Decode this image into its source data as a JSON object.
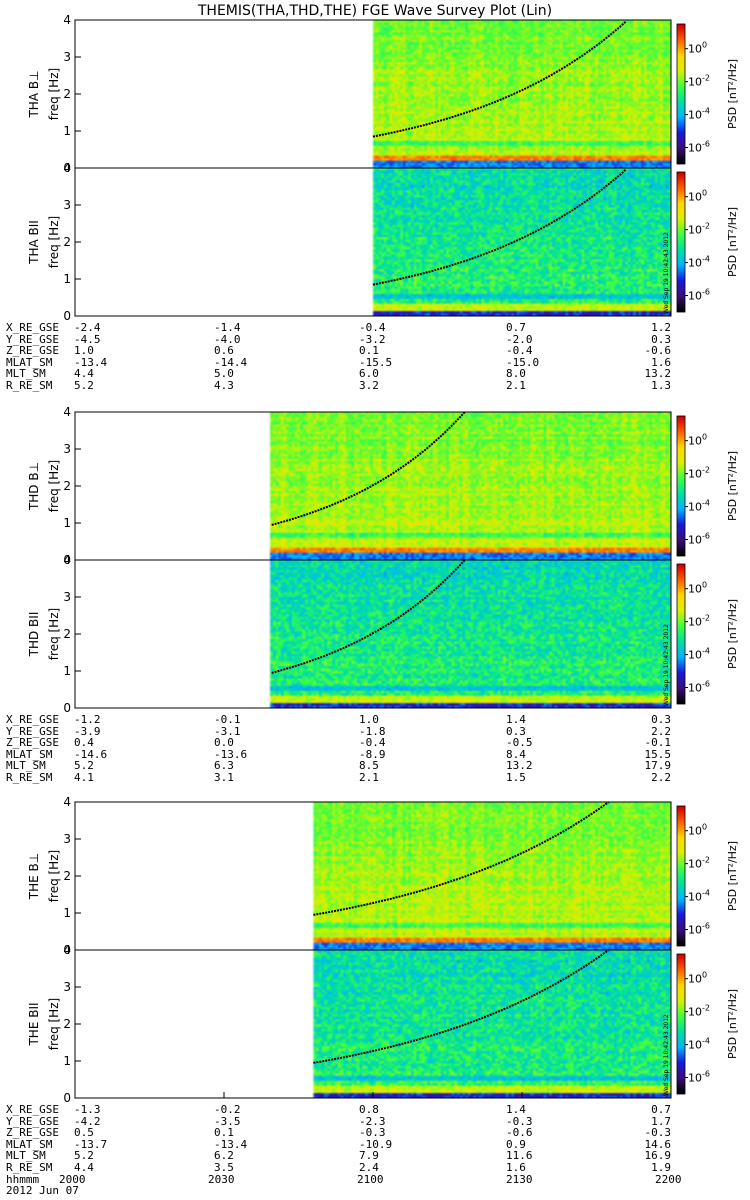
{
  "chart_data": {
    "type": "heatmap",
    "title": "THEMIS(THA,THD,THE) FGE Wave Survey Plot (Lin)",
    "date_label": "2012 Jun 07",
    "stamp": "Wed Sep 19 10:42:43 2012",
    "colorbar": {
      "label_prefix": "PSD",
      "label_unit": "[nT²/Hz]",
      "ticks": [
        {
          "base": "10",
          "exp": "0"
        },
        {
          "base": "10",
          "exp": "-2"
        },
        {
          "base": "10",
          "exp": "-4"
        },
        {
          "base": "10",
          "exp": "-6"
        }
      ],
      "range_log10": [
        -7,
        1.5
      ],
      "colors": [
        "#000000",
        "#3a0f7a",
        "#1a1adc",
        "#00b4ff",
        "#00e0a0",
        "#40ff40",
        "#d8f000",
        "#ffd800",
        "#ff6000",
        "#d00000"
      ]
    },
    "ylabel": "freq [Hz]",
    "yticks": [
      "0",
      "1",
      "2",
      "3",
      "4"
    ],
    "ylim": [
      0,
      4
    ],
    "x_axis": {
      "label": "hhmmm",
      "ticks": [
        "2000",
        "2030",
        "2100",
        "2130",
        "2200"
      ]
    },
    "probes": [
      {
        "id": "THA",
        "data_start_frac": 0.5,
        "gyro_start_hz": 0.85,
        "gyro_rate": 1.25,
        "panels": [
          {
            "label": "THA B⊥",
            "component": "perp"
          },
          {
            "label": "THA BII",
            "component": "par"
          }
        ],
        "orbit": [
          {
            "name": "X_RE_GSE",
            "values": [
              "-2.4",
              "-1.4",
              "-0.4",
              "0.7",
              "1.2"
            ]
          },
          {
            "name": "Y_RE_GSE",
            "values": [
              "-4.5",
              "-4.0",
              "-3.2",
              "-2.0",
              "0.3"
            ]
          },
          {
            "name": "Z_RE_GSE",
            "values": [
              "1.0",
              "0.6",
              "0.1",
              "-0.4",
              "-0.6"
            ]
          },
          {
            "name": "MLAT_SM",
            "values": [
              "-13.4",
              "-14.4",
              "-15.5",
              "-15.0",
              "1.6"
            ]
          },
          {
            "name": "MLT_SM",
            "values": [
              "4.4",
              "5.0",
              "6.0",
              "8.0",
              "13.2"
            ]
          },
          {
            "name": "R_RE_SM",
            "values": [
              "5.2",
              "4.3",
              "3.2",
              "2.1",
              "1.3"
            ]
          }
        ]
      },
      {
        "id": "THD",
        "data_start_frac": 0.33,
        "gyro_start_hz": 0.95,
        "gyro_rate": 2.05,
        "panels": [
          {
            "label": "THD B⊥",
            "component": "perp"
          },
          {
            "label": "THD BII",
            "component": "par"
          }
        ],
        "orbit": [
          {
            "name": "X_RE_GSE",
            "values": [
              "-1.2",
              "-0.1",
              "1.0",
              "1.4",
              "0.3"
            ]
          },
          {
            "name": "Y_RE_GSE",
            "values": [
              "-3.9",
              "-3.1",
              "-1.8",
              "0.3",
              "2.2"
            ]
          },
          {
            "name": "Z_RE_GSE",
            "values": [
              "0.4",
              "0.0",
              "-0.4",
              "-0.5",
              "-0.1"
            ]
          },
          {
            "name": "MLAT_SM",
            "values": [
              "-14.6",
              "-13.6",
              "-8.9",
              "8.4",
              "15.5"
            ]
          },
          {
            "name": "MLT_SM",
            "values": [
              "5.2",
              "6.3",
              "8.5",
              "13.2",
              "17.9"
            ]
          },
          {
            "name": "R_RE_SM",
            "values": [
              "4.1",
              "3.1",
              "2.1",
              "1.5",
              "2.2"
            ]
          }
        ]
      },
      {
        "id": "THE",
        "data_start_frac": 0.4,
        "gyro_start_hz": 0.95,
        "gyro_rate": 1.2,
        "panels": [
          {
            "label": "THE B⊥",
            "component": "perp"
          },
          {
            "label": "THE BII",
            "component": "par"
          }
        ],
        "orbit": [
          {
            "name": "X_RE_GSE",
            "values": [
              "-1.3",
              "-0.2",
              "0.8",
              "1.4",
              "0.7"
            ]
          },
          {
            "name": "Y_RE_GSE",
            "values": [
              "-4.2",
              "-3.5",
              "-2.3",
              "-0.3",
              "1.7"
            ]
          },
          {
            "name": "Z_RE_GSE",
            "values": [
              "0.5",
              "0.1",
              "-0.3",
              "-0.6",
              "-0.3"
            ]
          },
          {
            "name": "MLAT_SM",
            "values": [
              "-13.7",
              "-13.4",
              "-10.9",
              "0.9",
              "14.6"
            ]
          },
          {
            "name": "MLT_SM",
            "values": [
              "5.2",
              "6.2",
              "7.9",
              "11.6",
              "16.9"
            ]
          },
          {
            "name": "R_RE_SM",
            "values": [
              "4.4",
              "3.5",
              "2.4",
              "1.6",
              "1.9"
            ]
          }
        ]
      }
    ]
  }
}
